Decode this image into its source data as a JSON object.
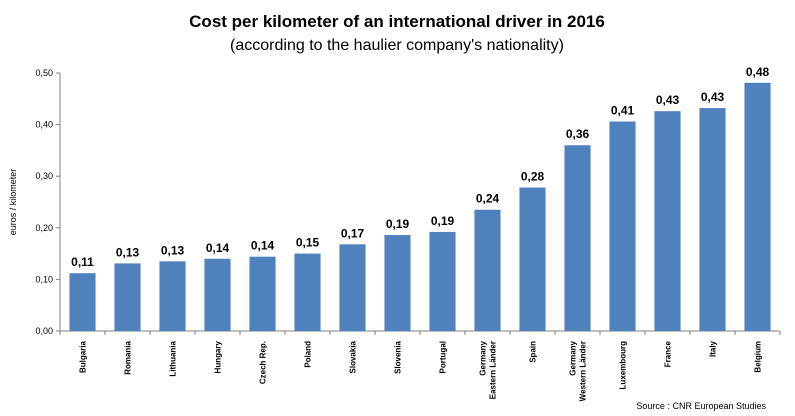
{
  "chart_data": {
    "type": "bar",
    "title": "Cost per kilometer of an international driver in 2016",
    "subtitle": "(according to the haulier company's nationality)",
    "ylabel": "euros / kilometer",
    "xlabel": "",
    "ylim": [
      0,
      0.5
    ],
    "yticks": [
      "0,00",
      "0,10",
      "0,20",
      "0,30",
      "0,40",
      "0,50"
    ],
    "categories": [
      "Bulgaria",
      "Romania",
      "Lithuania",
      "Hungary",
      "Czech Rep.",
      "Poland",
      "Slovakia",
      "Slovenia",
      "Portugal",
      "Germany\nEastern Länder",
      "Spain",
      "Germany\nWestern Länder",
      "Luxembourg",
      "France",
      "Italy",
      "Belgium"
    ],
    "values": [
      0.112,
      0.131,
      0.135,
      0.14,
      0.144,
      0.15,
      0.168,
      0.186,
      0.192,
      0.235,
      0.278,
      0.36,
      0.406,
      0.426,
      0.432,
      0.481
    ],
    "data_labels": [
      "0,11",
      "0,13",
      "0,13",
      "0,14",
      "0,14",
      "0,15",
      "0,17",
      "0,19",
      "0,19",
      "0,24",
      "0,28",
      "0,36",
      "0,41",
      "0,43",
      "0,43",
      "0,48"
    ],
    "bar_color": "#4f81bd",
    "grid": false,
    "legend": "none",
    "source": "Source : CNR European Studies"
  }
}
